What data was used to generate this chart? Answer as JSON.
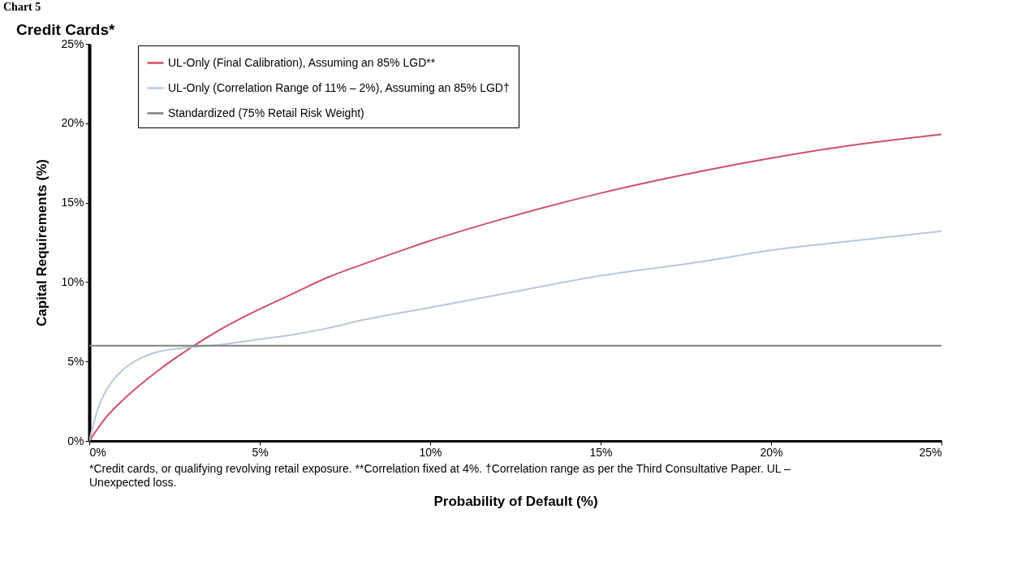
{
  "chart_data": {
    "type": "line",
    "title": "Chart 5",
    "subtitle": "Credit Cards*",
    "xlabel": "Probability of Default (%)",
    "ylabel": "Capital Requirements (%)",
    "series": [
      {
        "name": "UL-Only (Final Calibration), Assuming an 85% LGD**",
        "color": "#d0506a",
        "x": [
          0,
          0.5,
          1,
          2,
          3,
          4,
          5,
          6,
          7,
          8,
          10,
          12,
          15,
          18,
          20,
          22,
          25
        ],
        "values": [
          0,
          1.5,
          2.6,
          4.4,
          5.9,
          7.2,
          8.3,
          9.3,
          10.3,
          11.1,
          12.6,
          13.9,
          15.6,
          17.0,
          17.8,
          18.5,
          19.3
        ]
      },
      {
        "name": "UL-Only (Correlation Range of 11% – 2%), Assuming an 85% LGD†",
        "color": "#b8c8dc",
        "x": [
          0,
          0.25,
          0.5,
          1,
          1.5,
          2,
          3,
          4,
          5,
          6,
          7,
          8,
          10,
          12,
          15,
          18,
          20,
          22,
          25
        ],
        "values": [
          0,
          2.0,
          3.2,
          4.5,
          5.2,
          5.6,
          5.9,
          6.1,
          6.4,
          6.7,
          7.1,
          7.6,
          8.4,
          9.2,
          10.4,
          11.3,
          12.0,
          12.5,
          13.2
        ]
      },
      {
        "name": "Standardized (75% Retail Risk Weight)",
        "color": "#808080",
        "x": [
          0,
          25
        ],
        "values": [
          6,
          6
        ]
      }
    ],
    "xlim": [
      0,
      25
    ],
    "ylim": [
      0,
      25
    ],
    "xticks": [
      {
        "value": 0,
        "label": "0%"
      },
      {
        "value": 5,
        "label": "5%"
      },
      {
        "value": 10,
        "label": "10%"
      },
      {
        "value": 15,
        "label": "15%"
      },
      {
        "value": 20,
        "label": "20%"
      },
      {
        "value": 25,
        "label": "25%"
      }
    ],
    "yticks": [
      {
        "value": 0,
        "label": "0%"
      },
      {
        "value": 5,
        "label": "5%"
      },
      {
        "value": 10,
        "label": "10%"
      },
      {
        "value": 15,
        "label": "15%"
      },
      {
        "value": 20,
        "label": "20%"
      },
      {
        "value": 25,
        "label": "25%"
      }
    ],
    "grid": false,
    "legend": "top",
    "marker": "none",
    "line_style": "solid",
    "annotations": [
      "*Credit cards, or qualifying revolving retail exposure. **Correlation fixed at 4%. †Correlation range as per the Third Consultative Paper. UL – Unexpected loss."
    ]
  }
}
